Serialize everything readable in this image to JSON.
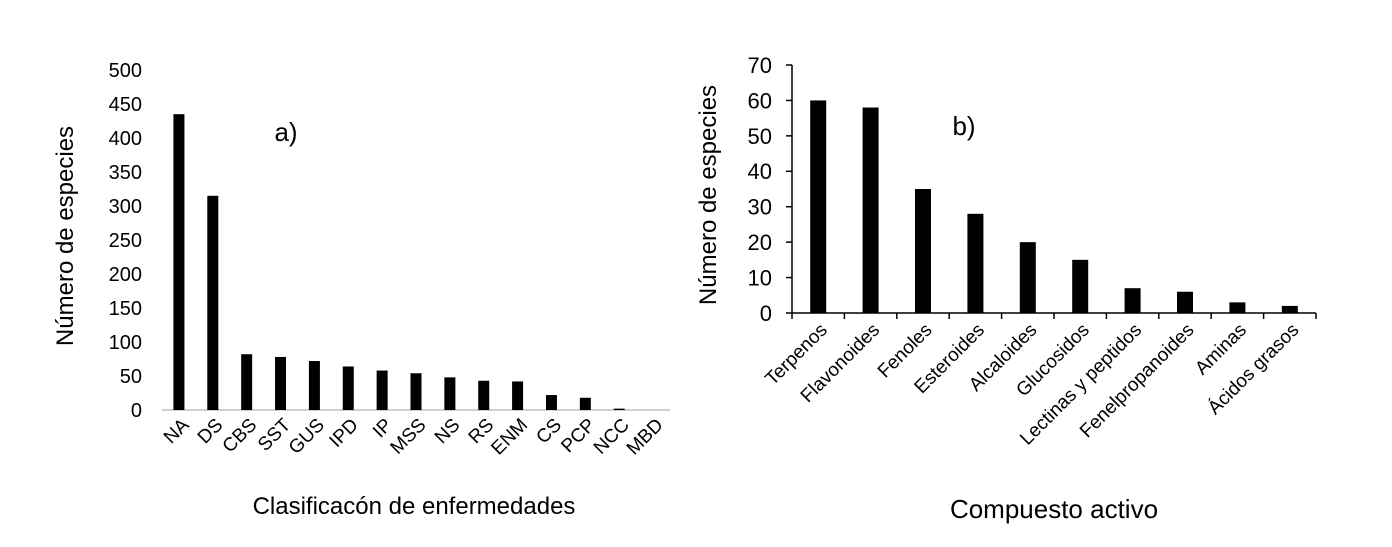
{
  "chart_data": [
    {
      "panel_label": "a)",
      "type": "bar",
      "xlabel": "Clasificacón de enfermedades",
      "ylabel": "Número de especies",
      "ylim": [
        0,
        500
      ],
      "yticks": [
        0,
        50,
        100,
        150,
        200,
        250,
        300,
        350,
        400,
        450,
        500
      ],
      "categories": [
        "NA",
        "DS",
        "CBS",
        "SST",
        "GUS",
        "IPD",
        "IP",
        "MSS",
        "NS",
        "RS",
        "ENM",
        "CS",
        "PCP",
        "NCC",
        "MBD"
      ],
      "values": [
        435,
        315,
        82,
        78,
        72,
        64,
        58,
        54,
        48,
        43,
        42,
        22,
        18,
        2,
        0
      ],
      "bar_color": "#000000"
    },
    {
      "panel_label": "b)",
      "type": "bar",
      "xlabel": "Compuesto activo",
      "ylabel": "Número de especies",
      "ylim": [
        0,
        70
      ],
      "yticks": [
        0,
        10,
        20,
        30,
        40,
        50,
        60,
        70
      ],
      "categories": [
        "Terpenos",
        "Flavonoides",
        "Fenoles",
        "Esteroides",
        "Alcaloides",
        "Glucosidos",
        "Lectinas y peptidos",
        "Fenelpropanoides",
        "Aminas",
        "Ácidos grasos"
      ],
      "values": [
        60,
        58,
        35,
        28,
        20,
        15,
        7,
        6,
        3,
        2
      ],
      "bar_color": "#000000"
    }
  ]
}
